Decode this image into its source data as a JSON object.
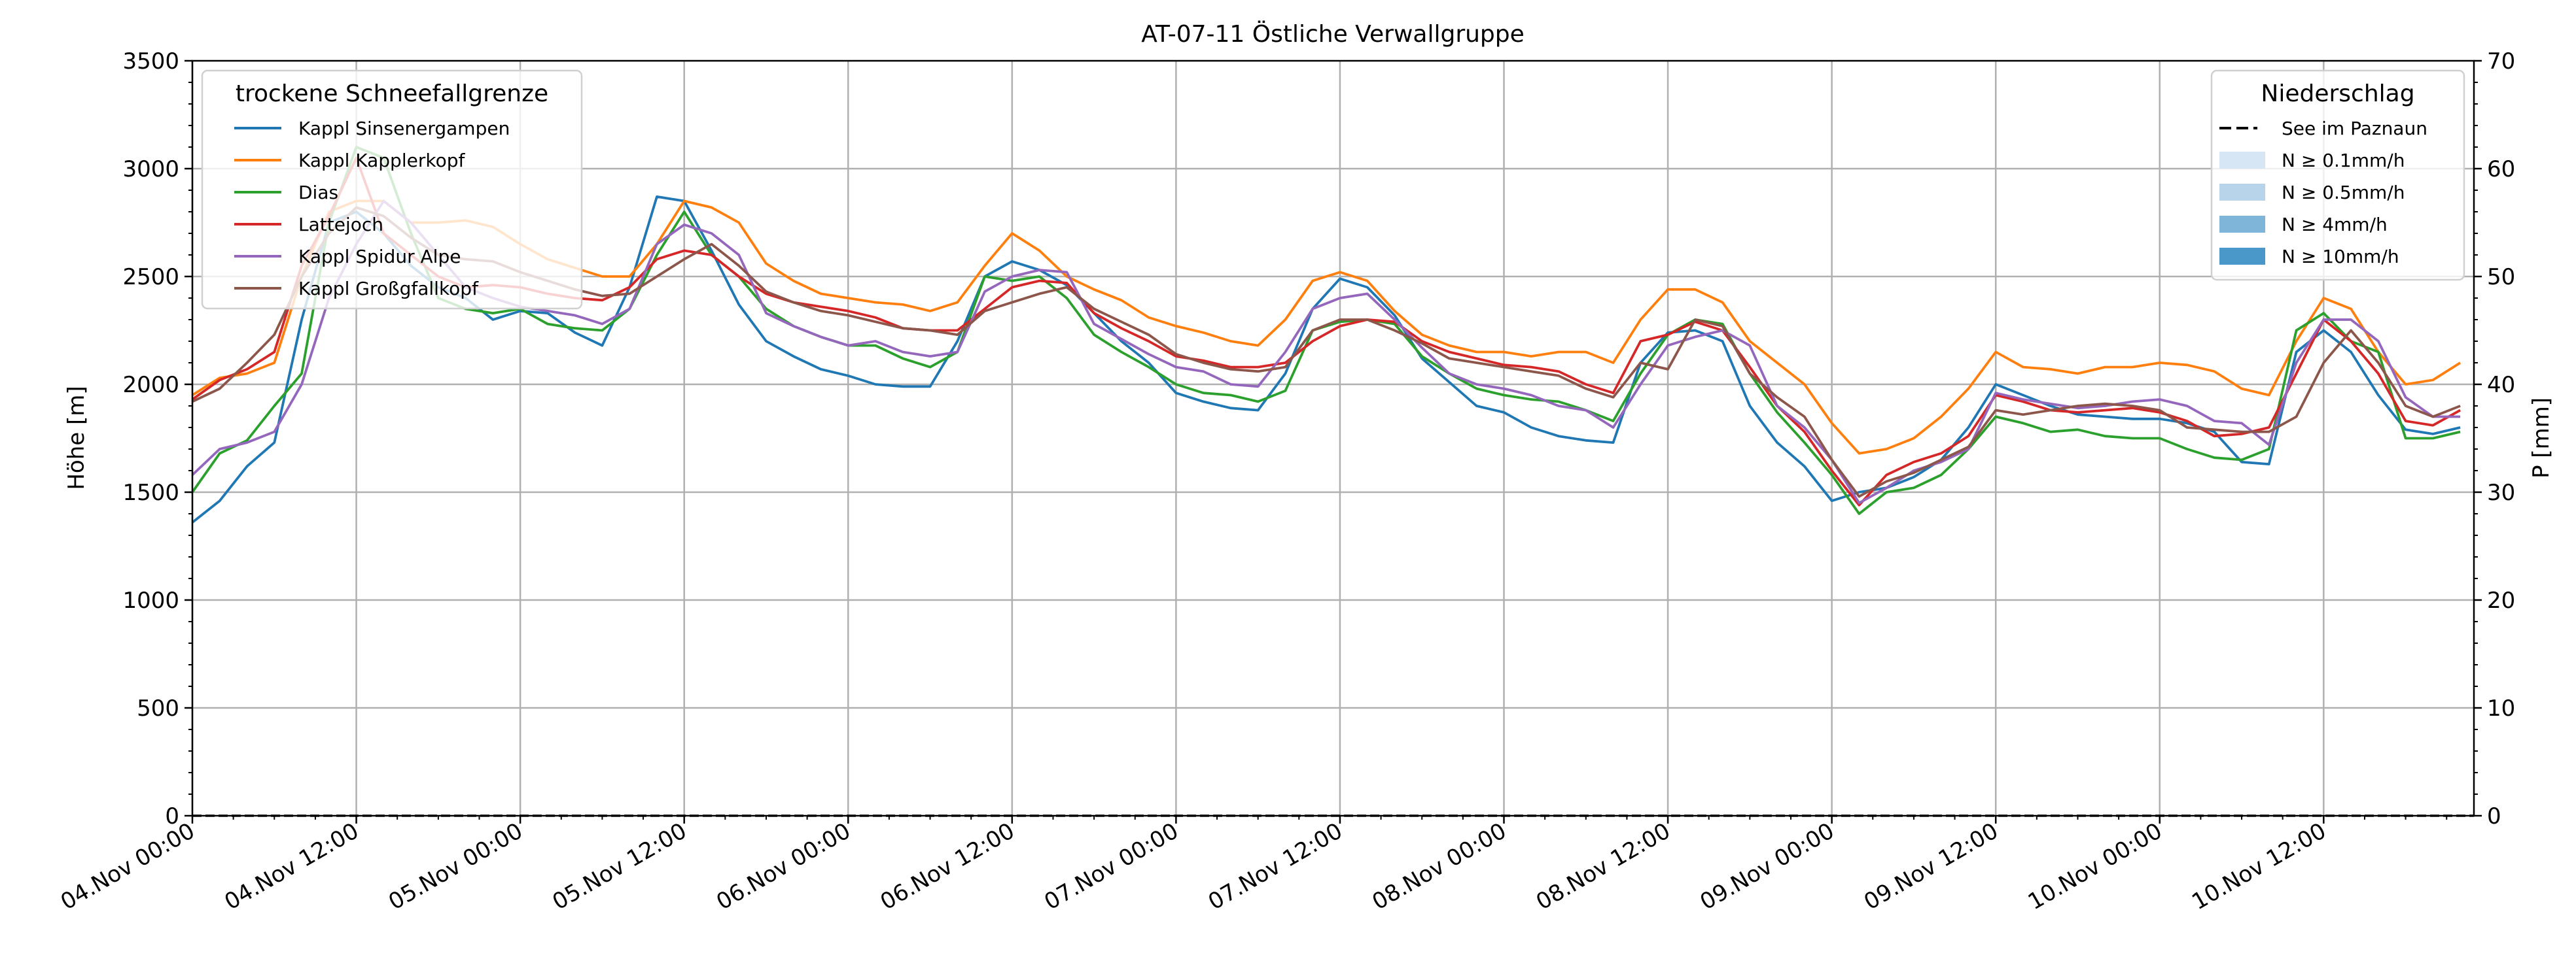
{
  "chart_data": {
    "type": "line",
    "title": "AT-07-11 Östliche Verwallgruppe",
    "xlabel": "",
    "ylabel": "Höhe [m]",
    "ylabel_right": "P [mm]",
    "xlim_hours": [
      0,
      167
    ],
    "ylim": [
      0,
      3500
    ],
    "ylim_right": [
      0,
      70
    ],
    "grid": true,
    "x_unit": "hours since 04.Nov 00:00",
    "x_ticks": [
      {
        "h": 0,
        "label": "04.Nov 00:00"
      },
      {
        "h": 12,
        "label": "04.Nov 12:00"
      },
      {
        "h": 24,
        "label": "05.Nov 00:00"
      },
      {
        "h": 36,
        "label": "05.Nov 12:00"
      },
      {
        "h": 48,
        "label": "06.Nov 00:00"
      },
      {
        "h": 60,
        "label": "06.Nov 12:00"
      },
      {
        "h": 72,
        "label": "07.Nov 00:00"
      },
      {
        "h": 84,
        "label": "07.Nov 12:00"
      },
      {
        "h": 96,
        "label": "08.Nov 00:00"
      },
      {
        "h": 108,
        "label": "08.Nov 12:00"
      },
      {
        "h": 120,
        "label": "09.Nov 00:00"
      },
      {
        "h": 132,
        "label": "09.Nov 12:00"
      },
      {
        "h": 144,
        "label": "10.Nov 00:00"
      },
      {
        "h": 156,
        "label": "10.Nov 12:00"
      }
    ],
    "y_ticks": [
      "0",
      "500",
      "1000",
      "1500",
      "2000",
      "2500",
      "3000",
      "3500"
    ],
    "y_ticks_right": [
      "0",
      "10",
      "20",
      "30",
      "40",
      "50",
      "60",
      "70"
    ],
    "x_step_hours": 2,
    "legend_left": {
      "title": "trockene Schneefallgrenze",
      "placement": "top-left"
    },
    "series": [
      {
        "name": "Kappl Sinsenergampen",
        "color": "#1f77b4",
        "values": [
          1360,
          1460,
          1620,
          1730,
          2300,
          2750,
          2800,
          2700,
          2550,
          2450,
          2400,
          2300,
          2340,
          2330,
          2240,
          2180,
          2450,
          2870,
          2850,
          2620,
          2370,
          2200,
          2130,
          2070,
          2040,
          2000,
          1990,
          1990,
          2200,
          2500,
          2570,
          2530,
          2460,
          2330,
          2200,
          2100,
          1960,
          1920,
          1890,
          1880,
          2050,
          2350,
          2490,
          2450,
          2320,
          2120,
          2010,
          1900,
          1870,
          1800,
          1760,
          1740,
          1730,
          2100,
          2240,
          2250,
          2200,
          1900,
          1730,
          1620,
          1460,
          1500,
          1520,
          1570,
          1650,
          1800,
          2000,
          1950,
          1900,
          1860,
          1850,
          1840,
          1840,
          1820,
          1780,
          1640,
          1630,
          2150,
          2250,
          2150,
          1950,
          1790,
          1770,
          1800
        ]
      },
      {
        "name": "Kappl Kapplerkopf",
        "color": "#ff7f0e",
        "values": [
          1950,
          2030,
          2050,
          2100,
          2500,
          2800,
          2850,
          2850,
          2750,
          2750,
          2760,
          2730,
          2650,
          2580,
          2540,
          2500,
          2500,
          2650,
          2850,
          2820,
          2750,
          2560,
          2480,
          2420,
          2400,
          2380,
          2370,
          2340,
          2380,
          2550,
          2700,
          2620,
          2500,
          2440,
          2390,
          2310,
          2270,
          2240,
          2200,
          2180,
          2300,
          2480,
          2520,
          2480,
          2340,
          2230,
          2180,
          2150,
          2150,
          2130,
          2150,
          2150,
          2100,
          2300,
          2440,
          2440,
          2380,
          2200,
          2100,
          2000,
          1820,
          1680,
          1700,
          1750,
          1850,
          1980,
          2150,
          2080,
          2070,
          2050,
          2080,
          2080,
          2100,
          2090,
          2060,
          1980,
          1950,
          2200,
          2400,
          2350,
          2150,
          2000,
          2020,
          2100
        ]
      },
      {
        "name": "Dias",
        "color": "#2ca02c",
        "values": [
          1500,
          1680,
          1740,
          1900,
          2050,
          2750,
          3100,
          3050,
          2700,
          2400,
          2350,
          2330,
          2350,
          2280,
          2260,
          2250,
          2350,
          2600,
          2800,
          2600,
          2500,
          2350,
          2270,
          2220,
          2180,
          2180,
          2120,
          2080,
          2150,
          2500,
          2480,
          2500,
          2400,
          2230,
          2150,
          2080,
          2000,
          1960,
          1950,
          1920,
          1970,
          2250,
          2290,
          2300,
          2280,
          2130,
          2050,
          1980,
          1950,
          1930,
          1920,
          1880,
          1830,
          2050,
          2230,
          2300,
          2280,
          2050,
          1870,
          1730,
          1580,
          1400,
          1500,
          1520,
          1580,
          1700,
          1850,
          1820,
          1780,
          1790,
          1760,
          1750,
          1750,
          1700,
          1660,
          1650,
          1700,
          2250,
          2330,
          2200,
          2150,
          1750,
          1750,
          1780
        ]
      },
      {
        "name": "Lattejoch",
        "color": "#d62728",
        "values": [
          1930,
          2020,
          2070,
          2150,
          2550,
          2780,
          3050,
          2700,
          2600,
          2500,
          2450,
          2460,
          2450,
          2420,
          2400,
          2390,
          2450,
          2580,
          2620,
          2600,
          2500,
          2420,
          2380,
          2360,
          2340,
          2310,
          2260,
          2250,
          2250,
          2350,
          2450,
          2480,
          2470,
          2330,
          2260,
          2200,
          2130,
          2110,
          2080,
          2080,
          2100,
          2200,
          2270,
          2300,
          2290,
          2200,
          2150,
          2120,
          2090,
          2080,
          2060,
          2000,
          1960,
          2200,
          2230,
          2290,
          2250,
          2080,
          1900,
          1780,
          1600,
          1440,
          1580,
          1640,
          1680,
          1760,
          1950,
          1920,
          1880,
          1870,
          1880,
          1890,
          1870,
          1830,
          1760,
          1770,
          1800,
          2050,
          2300,
          2200,
          2050,
          1830,
          1810,
          1880
        ]
      },
      {
        "name": "Kappl Spidur Alpe",
        "color": "#9467bd",
        "values": [
          1580,
          1700,
          1730,
          1780,
          2000,
          2400,
          2650,
          2850,
          2750,
          2600,
          2450,
          2400,
          2360,
          2340,
          2320,
          2280,
          2350,
          2650,
          2740,
          2700,
          2600,
          2330,
          2270,
          2220,
          2180,
          2200,
          2150,
          2130,
          2150,
          2430,
          2500,
          2530,
          2520,
          2280,
          2210,
          2140,
          2080,
          2060,
          2000,
          1990,
          2150,
          2350,
          2400,
          2420,
          2300,
          2170,
          2050,
          2000,
          1980,
          1950,
          1900,
          1880,
          1800,
          2000,
          2180,
          2220,
          2250,
          2180,
          1900,
          1800,
          1650,
          1450,
          1520,
          1600,
          1640,
          1700,
          1960,
          1930,
          1910,
          1890,
          1900,
          1920,
          1930,
          1900,
          1830,
          1820,
          1720,
          2100,
          2300,
          2300,
          2200,
          1940,
          1850,
          1850
        ]
      },
      {
        "name": "Kappl Großgfallkopf",
        "color": "#8c564b",
        "values": [
          1920,
          1980,
          2100,
          2230,
          2500,
          2700,
          2820,
          2780,
          2680,
          2600,
          2580,
          2570,
          2520,
          2480,
          2440,
          2410,
          2420,
          2500,
          2580,
          2650,
          2550,
          2430,
          2380,
          2340,
          2320,
          2290,
          2260,
          2250,
          2230,
          2340,
          2380,
          2420,
          2450,
          2350,
          2290,
          2230,
          2140,
          2100,
          2070,
          2060,
          2080,
          2250,
          2300,
          2300,
          2250,
          2190,
          2120,
          2100,
          2080,
          2060,
          2040,
          1980,
          1940,
          2100,
          2070,
          2300,
          2270,
          2050,
          1940,
          1850,
          1650,
          1480,
          1550,
          1590,
          1650,
          1710,
          1880,
          1860,
          1880,
          1900,
          1910,
          1900,
          1880,
          1800,
          1790,
          1780,
          1780,
          1850,
          2100,
          2250,
          2100,
          1900,
          1850,
          1900
        ]
      }
    ],
    "legend_right": {
      "title": "Niederschlag",
      "placement": "top-right",
      "entries": [
        {
          "label": "See im Paznaun",
          "kind": "dashed-line",
          "color": "#000000"
        },
        {
          "label": "N ≥ 0.1mm/h",
          "kind": "patch",
          "color": "#d6e6f4"
        },
        {
          "label": "N ≥ 0.5mm/h",
          "kind": "patch",
          "color": "#b7d4ea"
        },
        {
          "label": "N ≥ 4mm/h",
          "kind": "patch",
          "color": "#7fb5d8"
        },
        {
          "label": "N ≥ 10mm/h",
          "kind": "patch",
          "color": "#4a98c9"
        }
      ]
    },
    "precipitation": {
      "name": "See im Paznaun",
      "x_hours": [
        0,
        167
      ],
      "values": [
        0,
        0
      ]
    }
  }
}
